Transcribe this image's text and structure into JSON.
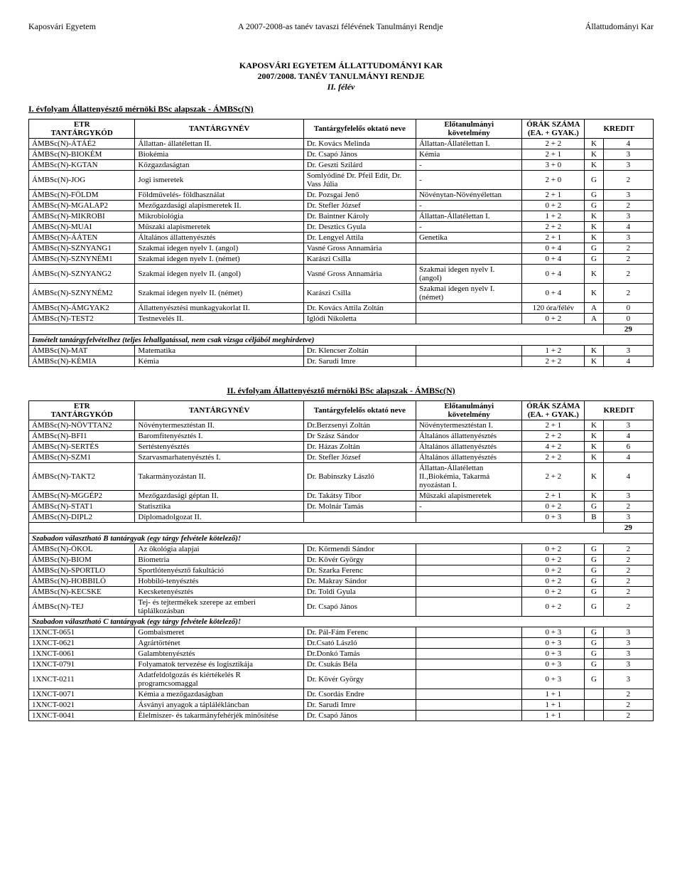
{
  "page_header": {
    "left": "Kaposvári Egyetem",
    "center": "A 2007-2008-as tanév tavaszi félévének Tanulmányi Rendje",
    "right": "Állattudományi Kar"
  },
  "title_block": [
    "KAPOSVÁRI EGYETEM ÁLLATTUDOMÁNYI KAR",
    "2007/2008. TANÉV TANULMÁNYI RENDJE",
    "II. félév"
  ],
  "columns": {
    "code": "ETR\nTANTÁRGYKÓD",
    "name": "TANTÁRGYNÉV",
    "instructor": "Tantárgyfelelős oktató neve",
    "req": "Előtanulmányi\nkövetelmény",
    "hours": "ÓRÁK SZÁMA\n(EA. + GYAK.)",
    "credit": "KREDIT"
  },
  "table1": {
    "subtitle": "I. évfolyam Állattenyésztő mérnöki BSc alapszak - ÁMBSc(N)",
    "rows": [
      {
        "code": "ÁMBSc(N)-ÁTÁÉ2",
        "name": "Állattan- állatélettan II.",
        "inst": "Dr. Kovács Melinda",
        "req": "Állattan-Állatélettan I.",
        "hours": "2 + 2",
        "grade": "K",
        "credit": "4"
      },
      {
        "code": "ÁMBSc(N)-BIOKÉM",
        "name": "Biokémia",
        "inst": "Dr. Csapó János",
        "req": "Kémia",
        "hours": "2 + 1",
        "grade": "K",
        "credit": "3"
      },
      {
        "code": "ÁMBSc(N)-KGTAN",
        "name": "Közgazdaságtan",
        "inst": "Dr. Geszti Szilárd",
        "req": "-",
        "hours": "3 + 0",
        "grade": "K",
        "credit": "3"
      },
      {
        "code": "ÁMBSc(N)-JOG",
        "name": "Jogi ismeretek",
        "inst": "Somlyódiné Dr. Pfeil Edit, Dr. Vass Júlia",
        "req": "-",
        "hours": "2 + 0",
        "grade": "G",
        "credit": "2"
      },
      {
        "code": "ÁMBSc(N)-FÖLDM",
        "name": "Földművelés- földhasználat",
        "inst": "Dr. Pozsgai Jenő",
        "req": "Növénytan-Növényélettan",
        "hours": "2 + 1",
        "grade": "G",
        "credit": "3"
      },
      {
        "code": "ÁMBSc(N)-MGALAP2",
        "name": "Mezőgazdasági alapismeretek II.",
        "inst": "Dr. Stefler József",
        "req": "-",
        "hours": "0 + 2",
        "grade": "G",
        "credit": "2"
      },
      {
        "code": "ÁMBSc(N)-MIKROBI",
        "name": "Mikrobiológia",
        "inst": "Dr. Baintner Károly",
        "req": "Állattan-Állatélettan I.",
        "hours": "1 + 2",
        "grade": "K",
        "credit": "3"
      },
      {
        "code": "ÁMBSc(N)-MUAI",
        "name": "Műszaki alapismeretek",
        "inst": "Dr. Desztics Gyula",
        "req": "-",
        "hours": "2 + 2",
        "grade": "K",
        "credit": "4"
      },
      {
        "code": "ÁMBSc(N)-ÁÁTEN",
        "name": "Általános állattenyésztés",
        "inst": "Dr. Lengyel Attila",
        "req": "Genetika",
        "hours": "2 + 1",
        "grade": "K",
        "credit": "3"
      },
      {
        "code": "ÁMBSc(N)-SZNYANG1",
        "name": "Szakmai idegen nyelv I. (angol)",
        "inst": "Vasné Gross Annamária",
        "req": "",
        "hours": "0 + 4",
        "grade": "G",
        "credit": "2"
      },
      {
        "code": "ÁMBSc(N)-SZNYNÉM1",
        "name": "Szakmai idegen nyelv I. (német)",
        "inst": "Karászi Csilla",
        "req": "",
        "hours": "0 + 4",
        "grade": "G",
        "credit": "2"
      },
      {
        "code": "ÁMBSc(N)-SZNYANG2",
        "name": "Szakmai idegen nyelv II. (angol)",
        "inst": "Vasné Gross Annamária",
        "req": "Szakmai idegen nyelv I. (angol)",
        "hours": "0 + 4",
        "grade": "K",
        "credit": "2"
      },
      {
        "code": "ÁMBSc(N)-SZNYNÉM2",
        "name": "Szakmai idegen nyelv II. (német)",
        "inst": "Karászi Csilla",
        "req": "Szakmai idegen nyelv I. (német)",
        "hours": "0 + 4",
        "grade": "K",
        "credit": "2"
      },
      {
        "code": "ÁMBSc(N)-ÁMGYAK2",
        "name": "Állattenyésztési munkagyakorlat II.",
        "inst": "Dr. Kovács Attila Zoltán",
        "req": "",
        "hours": "120 óra/félév",
        "grade": "A",
        "credit": "0"
      },
      {
        "code": "ÁMBSc(N)-TEST2",
        "name": "Testnevelés II.",
        "inst": "Iglódi Nikoletta",
        "req": "",
        "hours": "0 + 2",
        "grade": "A",
        "credit": "0"
      }
    ],
    "sum": "29",
    "footnote": "Ismételt tantárgyfelvételhez (teljes lehallgatással, nem csak vizsga céljából meghirdetve)",
    "extras": [
      {
        "code": "ÁMBSc(N)-MAT",
        "name": "Matematika",
        "inst": "Dr. Klencser  Zoltán",
        "req": "",
        "hours": "1 + 2",
        "grade": "K",
        "credit": "3"
      },
      {
        "code": "ÁMBSc(N)-KÉMIA",
        "name": "Kémia",
        "inst": "Dr. Sarudi Imre",
        "req": "",
        "hours": "2 + 2",
        "grade": "K",
        "credit": "4"
      }
    ]
  },
  "table2": {
    "subtitle": "II. évfolyam Állattenyésztő mérnöki BSc alapszak - ÁMBSc(N)",
    "rows": [
      {
        "code": "ÁMBSc(N)-NÖVTTAN2",
        "name": "Növénytermesztéstan II.",
        "inst": "Dr.Berzsenyi Zoltán",
        "req": "Növénytermesztéstan I.",
        "hours": "2 + 1",
        "grade": "K",
        "credit": "3"
      },
      {
        "code": "ÁMBSc(N)-BFI1",
        "name": "Baromfitenyésztés I.",
        "inst": "Dr Szász Sándor",
        "req": "Általános állattenyésztés",
        "hours": "2 + 2",
        "grade": "K",
        "credit": "4"
      },
      {
        "code": "ÁMBSc(N)-SERTÉS",
        "name": "Sertéstenyésztés",
        "inst": "Dr. Házas Zoltán",
        "req": "Általános állattenyésztés",
        "hours": "4 + 2",
        "grade": "K",
        "credit": "6"
      },
      {
        "code": "ÁMBSc(N)-SZM1",
        "name": "Szarvasmarhatenyésztés I.",
        "inst": "Dr. Stefler József",
        "req": "Általános állattenyésztés",
        "hours": "2 + 2",
        "grade": "K",
        "credit": "4"
      },
      {
        "code": "ÁMBSc(N)-TAKT2",
        "name": "Takarmányozástan II.",
        "inst": "Dr. Babinszky László",
        "req": "Állattan-Állatélettan II.,Biokémia, Takarmá nyozástan I.",
        "hours": "2 + 2",
        "grade": "K",
        "credit": "4"
      },
      {
        "code": "ÁMBSc(N)-MGGÉP2",
        "name": "Mezőgazdasági géptan II.",
        "inst": "Dr. Takátsy Tibor",
        "req": "Műszaki alapismeretek",
        "hours": "2 + 1",
        "grade": "K",
        "credit": "3"
      },
      {
        "code": "ÁMBSc(N)-STAT1",
        "name": "Statisztika",
        "inst": "Dr. Molnár Tamás",
        "req": "-",
        "hours": "0 + 2",
        "grade": "G",
        "credit": "2"
      },
      {
        "code": "ÁMBSc(N)-DIPL2",
        "name": "Diplomadolgozat II.",
        "inst": "",
        "req": "",
        "hours": "0 + 3",
        "grade": "B",
        "credit": "3"
      }
    ],
    "sum": "29",
    "groupB_label": "Szabadon választható B tantárgyak  (egy tárgy felvétele kötelező)!",
    "groupB": [
      {
        "code": "ÁMBSc(N)-ÖKOL",
        "name": "Az ökológia alapjai",
        "inst": "Dr. Körmendi Sándor",
        "req": "",
        "hours": "0 + 2",
        "grade": "G",
        "credit": "2"
      },
      {
        "code": "ÁMBSc(N)-BIOM",
        "name": "Biometria",
        "inst": "Dr. Kövér György",
        "req": "",
        "hours": "0 + 2",
        "grade": "G",
        "credit": "2"
      },
      {
        "code": "ÁMBSc(N)-SPORTLO",
        "name": "Sportlótenyésztő fakultáció",
        "inst": "Dr. Szarka Ferenc",
        "req": "",
        "hours": "0 + 2",
        "grade": "G",
        "credit": "2"
      },
      {
        "code": "ÁMBSc(N)-HOBBILÓ",
        "name": "Hobbiló-tenyésztés",
        "inst": "Dr. Makray Sándor",
        "req": "",
        "hours": "0 + 2",
        "grade": "G",
        "credit": "2"
      },
      {
        "code": "ÁMBSc(N)-KECSKE",
        "name": "Kecsketenyésztés",
        "inst": "Dr. Toldi Gyula",
        "req": "",
        "hours": "0 + 2",
        "grade": "G",
        "credit": "2"
      },
      {
        "code": "ÁMBSc(N)-TEJ",
        "name": "Tej- és tejtermékek szerepe az emberi táplálkozásban",
        "inst": "Dr. Csapó János",
        "req": "",
        "hours": "0 + 2",
        "grade": "G",
        "credit": "2"
      }
    ],
    "groupC_label": "Szabadon választható C tantárgyak  (egy tárgy felvétele kötelező)!",
    "groupC": [
      {
        "code": "1XNCT-0651",
        "name": "Gombaismeret",
        "inst": "Dr. Pál-Fám Ferenc",
        "req": "",
        "hours": "0 + 3",
        "grade": "G",
        "credit": "3"
      },
      {
        "code": "1XNCT-0621",
        "name": "Agrártörténet",
        "inst": "Dr.Csató László",
        "req": "",
        "hours": "0 + 3",
        "grade": "G",
        "credit": "3"
      },
      {
        "code": "1XNCT-0061",
        "name": "Galambtenyésztés",
        "inst": "Dr.Donkó Tamás",
        "req": "",
        "hours": "0 + 3",
        "grade": "G",
        "credit": "3"
      },
      {
        "code": "1XNCT-0791",
        "name": "Folyamatok tervezése és logisztikája",
        "inst": "Dr. Csukás Béla",
        "req": "",
        "hours": "0 + 3",
        "grade": "G",
        "credit": "3"
      },
      {
        "code": "1XNCT-0211",
        "name": "Adatfeldolgozás és kiértékelés R programcsomaggal",
        "inst": "Dr. Kövér György",
        "req": "",
        "hours": "0 + 3",
        "grade": "G",
        "credit": "3"
      },
      {
        "code": "1XNCT-0071",
        "name": "Kémia a mezőgazdaságban",
        "inst": "Dr. Csordás Endre",
        "req": "",
        "hours": "1 + 1",
        "grade": "",
        "credit": "2"
      },
      {
        "code": "1XNCT-0021",
        "name": "Ásványi anyagok a táplálékláncban",
        "inst": "Dr. Sarudi Imre",
        "req": "",
        "hours": "1 + 1",
        "grade": "",
        "credit": "2"
      },
      {
        "code": "1XNCT-0041",
        "name": "Élelmiszer- és takarmányfehérjék minősítése",
        "inst": "Dr. Csapó János",
        "req": "",
        "hours": "1 + 1",
        "grade": "",
        "credit": "2"
      }
    ]
  }
}
